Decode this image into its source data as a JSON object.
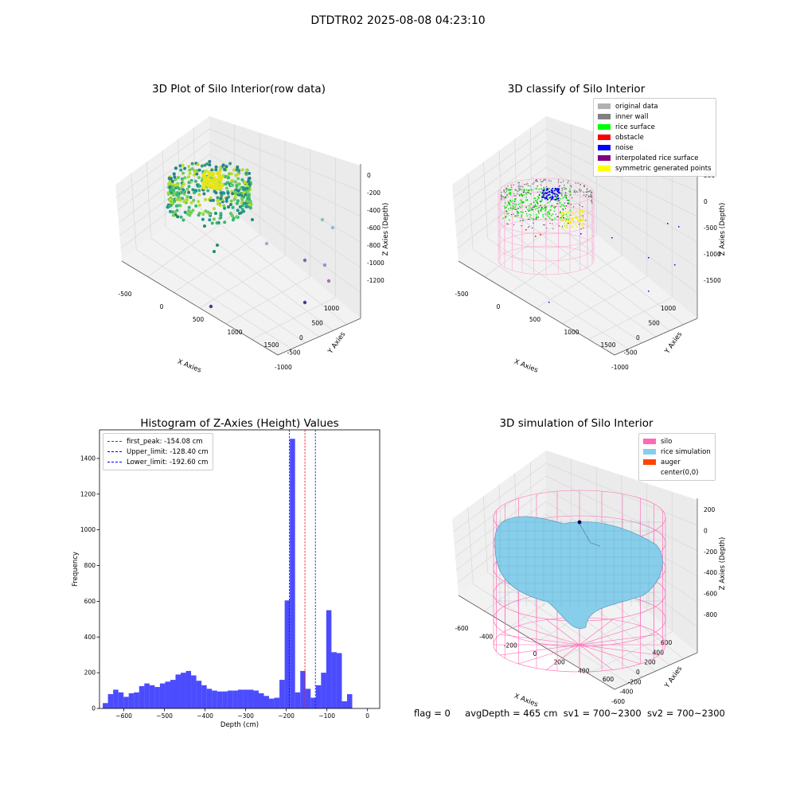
{
  "suptitle": "DTDTR02 2025-08-08 04:23:10",
  "panels": {
    "raw": {
      "title": "3D Plot of Silo Interior(row data)",
      "xlabel": "X Axies",
      "ylabel": "Y Axies",
      "zlabel": "Z Axies (Depth)",
      "xticks": [
        "-500",
        "0",
        "500",
        "1000",
        "1500"
      ],
      "yticks": [
        "1000",
        "500",
        "0",
        "-500",
        "-1000"
      ],
      "zticks": [
        "0",
        "-200",
        "-400",
        "-600",
        "-800",
        "-1000",
        "-1200"
      ]
    },
    "classify": {
      "title": "3D classify of Silo Interior",
      "xlabel": "X Axies",
      "ylabel": "Y Axies",
      "zlabel": "Z Axies (Depth)",
      "xticks": [
        "-500",
        "0",
        "500",
        "1000",
        "1500"
      ],
      "yticks": [
        "1000",
        "500",
        "0",
        "-500",
        "-1000"
      ],
      "zticks": [
        "500",
        "0",
        "-500",
        "-1000",
        "-1500"
      ],
      "legend": [
        {
          "label": "original data",
          "color": "#b0b0b0"
        },
        {
          "label": "inner wall",
          "color": "#808080"
        },
        {
          "label": "rice surface",
          "color": "#00ff00"
        },
        {
          "label": "obstacle",
          "color": "#ff0000"
        },
        {
          "label": "noise",
          "color": "#0000ff"
        },
        {
          "label": "interpolated rice surface",
          "color": "#800080"
        },
        {
          "label": "symmetric generated points",
          "color": "#ffff00"
        }
      ]
    },
    "simulation": {
      "title": "3D simulation of Silo Interior",
      "xlabel": "X Axies",
      "ylabel": "Y Axies",
      "zlabel": "Z Axies (Depth)",
      "xticks": [
        "-600",
        "-400",
        "-200",
        "0",
        "200",
        "400",
        "600"
      ],
      "yticks": [
        "600",
        "400",
        "200",
        "0",
        "-200",
        "-400",
        "-600"
      ],
      "zticks": [
        "200",
        "0",
        "-200",
        "-400",
        "-600",
        "-800"
      ],
      "legend": [
        {
          "label": "silo",
          "color": "#ff69b4"
        },
        {
          "label": "rice simulation",
          "color": "#87ceeb"
        },
        {
          "label": "auger",
          "color": "#ff4500"
        },
        {
          "label": "center(0,0)",
          "color": ""
        }
      ]
    }
  },
  "chart_data": {
    "type": "bar",
    "title": "Histogram of Z-Axies (Height) Values",
    "xlabel": "Depth (cm)",
    "ylabel": "Frequency",
    "xlim": [
      -660,
      30
    ],
    "ylim": [
      0,
      1560
    ],
    "xticks": [
      -600,
      -500,
      -400,
      -300,
      -200,
      -100,
      0
    ],
    "yticks": [
      0,
      200,
      400,
      600,
      800,
      1000,
      1200,
      1400
    ],
    "bar_color": "#0000ff",
    "bin_width": 12.8,
    "bin_start": -652,
    "values": [
      30,
      80,
      105,
      90,
      65,
      85,
      90,
      125,
      140,
      130,
      120,
      140,
      150,
      160,
      190,
      200,
      210,
      185,
      155,
      130,
      110,
      100,
      95,
      95,
      100,
      100,
      105,
      105,
      105,
      100,
      85,
      70,
      55,
      60,
      160,
      605,
      1510,
      90,
      210,
      110,
      60,
      130,
      200,
      550,
      315,
      310,
      40,
      80
    ],
    "vlines": [
      {
        "label": "first_peak: -154.08 cm",
        "x": -154.08,
        "color": "#ff0000"
      },
      {
        "label": "Upper_limit: -128.40 cm",
        "x": -128.4,
        "color": "#0000ff"
      },
      {
        "label": "Lower_limit: -192.60 cm",
        "x": -192.6,
        "color": "#0000ff"
      }
    ]
  },
  "footer": {
    "flag": "flag = 0",
    "avg": "avgDepth = 465 cm",
    "sv1": "sv1 = 700~2300",
    "sv2": "sv2 = 700~2300"
  }
}
